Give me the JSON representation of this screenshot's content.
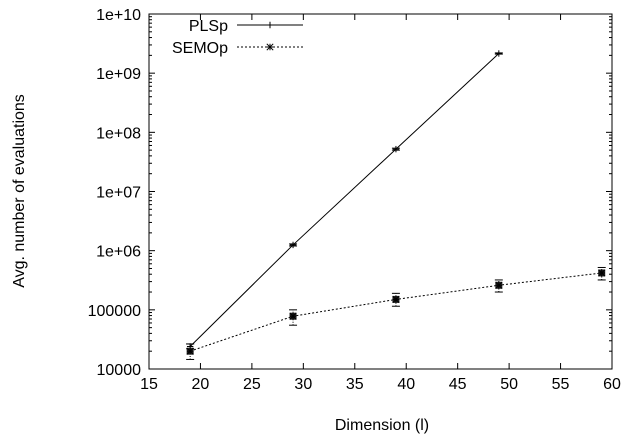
{
  "chart_data": {
    "type": "line",
    "xlabel": "Dimension (l)",
    "ylabel": "Avg. number of evaluations",
    "xlim": [
      15,
      60
    ],
    "ylim": [
      10000,
      10000000000
    ],
    "yscale": "log",
    "x_ticks": [
      15,
      20,
      25,
      30,
      35,
      40,
      45,
      50,
      55,
      60
    ],
    "x_tick_labels": [
      "15",
      "20",
      "25",
      "30",
      "35",
      "40",
      "45",
      "50",
      "55",
      "60"
    ],
    "y_ticks": [
      10000,
      100000,
      1000000,
      10000000,
      100000000,
      1000000000,
      10000000000
    ],
    "y_tick_labels": [
      "10000",
      "100000",
      "1e+06",
      "1e+07",
      "1e+08",
      "1e+09",
      "1e+10"
    ],
    "legend_position": "top-left",
    "series": [
      {
        "name": "PLSp",
        "line_style": "solid",
        "marker": "plus",
        "x": [
          19,
          29,
          39,
          49
        ],
        "y": [
          24000,
          1250000,
          52000000,
          2150000000
        ],
        "error": [
          [
            22000,
            26500
          ],
          [
            1200000,
            1300000
          ],
          [
            50000000,
            54000000
          ],
          [
            2100000000,
            2200000000
          ]
        ]
      },
      {
        "name": "SEMOp",
        "line_style": "dotted",
        "marker": "star",
        "x": [
          19,
          29,
          39,
          49,
          59
        ],
        "y": [
          20000,
          78000,
          150000,
          260000,
          420000
        ],
        "error": [
          [
            14500,
            26500
          ],
          [
            55000,
            100000
          ],
          [
            115000,
            190000
          ],
          [
            200000,
            320000
          ],
          [
            320000,
            520000
          ]
        ]
      }
    ]
  }
}
